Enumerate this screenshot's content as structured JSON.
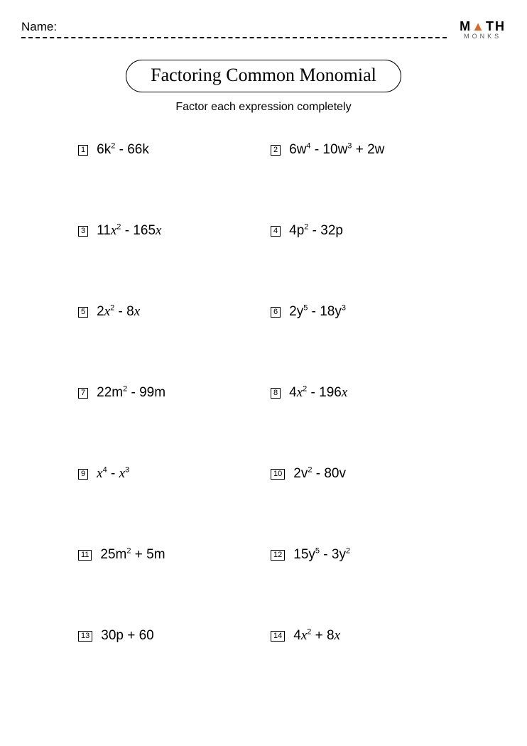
{
  "header": {
    "name_label": "Name:",
    "logo_top_left": "M",
    "logo_top_tri": "▲",
    "logo_top_right": "TH",
    "logo_bottom": "MONKS"
  },
  "title": "Factoring Common Monomial",
  "subtitle": "Factor each expression completely",
  "problems": [
    {
      "n": "1",
      "html": "6k<sup>2</sup> - 66k"
    },
    {
      "n": "2",
      "html": "6w<sup>4</sup> - 10w<sup>3</sup> + 2w"
    },
    {
      "n": "3",
      "html": "11<span class='v-it'>x</span><sup>2</sup> - 165<span class='v-it'>x</span>"
    },
    {
      "n": "4",
      "html": "4p<sup>2</sup> - 32p"
    },
    {
      "n": "5",
      "html": "2<span class='v-it'>x</span><sup>2</sup> - 8<span class='v-it'>x</span>"
    },
    {
      "n": "6",
      "html": "2y<sup>5</sup> - 18y<sup>3</sup>"
    },
    {
      "n": "7",
      "html": "22m<sup>2</sup> - 99m"
    },
    {
      "n": "8",
      "html": "4<span class='v-it'>x</span><sup>2</sup> - 196<span class='v-it'>x</span>"
    },
    {
      "n": "9",
      "html": "<span class='v-it'>x</span><sup>4</sup> - <span class='v-it'>x</span><sup>3</sup>"
    },
    {
      "n": "10",
      "html": "2v<sup>2</sup> - 80v"
    },
    {
      "n": "11",
      "html": "25m<sup>2</sup> + 5m"
    },
    {
      "n": "12",
      "html": "15y<sup>5</sup> - 3y<sup>2</sup>"
    },
    {
      "n": "13",
      "html": "30p + 60"
    },
    {
      "n": "14",
      "html": "4<span class='v-it'>x</span><sup>2</sup> + 8<span class='v-it'>x</span>"
    }
  ],
  "colors": {
    "text": "#000000",
    "background": "#ffffff",
    "logo_accent": "#d36a2a"
  }
}
